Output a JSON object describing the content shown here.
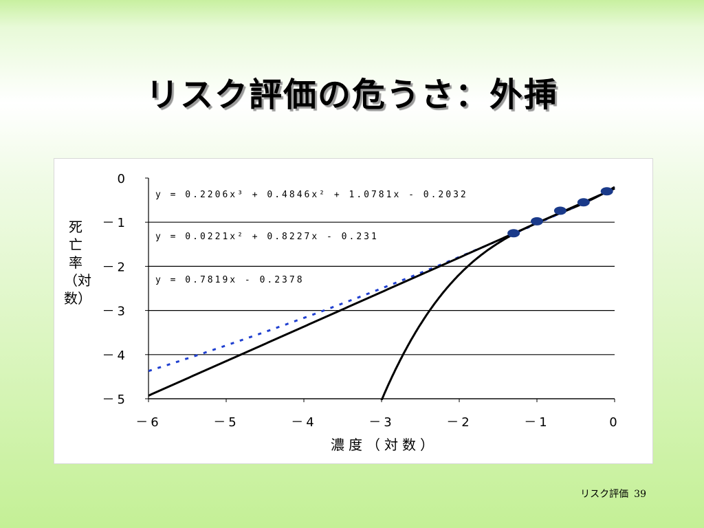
{
  "slide": {
    "title": "リスク評価の危うさ：外挿",
    "footer_text": "リスク評価",
    "page_number": "39"
  },
  "chart_data": {
    "type": "line",
    "xlabel": "濃度（対数）",
    "ylabel": "死亡率（対数）",
    "xlim": [
      -6,
      0
    ],
    "ylim": [
      -5,
      0
    ],
    "x_ticks": [
      "－6",
      "－5",
      "－4",
      "－3",
      "－2",
      "－1",
      "0"
    ],
    "y_ticks": [
      "0",
      "－1",
      "－2",
      "－3",
      "－4",
      "－5"
    ],
    "grid": "horizontal",
    "observed_points": {
      "x": [
        -1.3,
        -1.0,
        -0.7,
        -0.4,
        -0.1
      ],
      "y": [
        -1.25,
        -0.98,
        -0.74,
        -0.55,
        -0.3
      ],
      "color": "#1a3a8a"
    },
    "series": [
      {
        "equation": "y = 0.2206x³ + 0.4846x² + 1.0781x - 0.2032",
        "coef": [
          0.2206,
          0.4846,
          1.0781,
          -0.2032
        ],
        "style": "solid",
        "color": "#000000"
      },
      {
        "equation": "y = 0.0221x² + 0.8227x - 0.231",
        "coef": [
          0,
          0.0221,
          0.8227,
          -0.231
        ],
        "style": "dashed",
        "color": "#2040d0"
      },
      {
        "equation": "y = 0.7819x - 0.2378",
        "coef": [
          0,
          0,
          0.7819,
          -0.2378
        ],
        "style": "solid",
        "color": "#000000"
      }
    ]
  }
}
